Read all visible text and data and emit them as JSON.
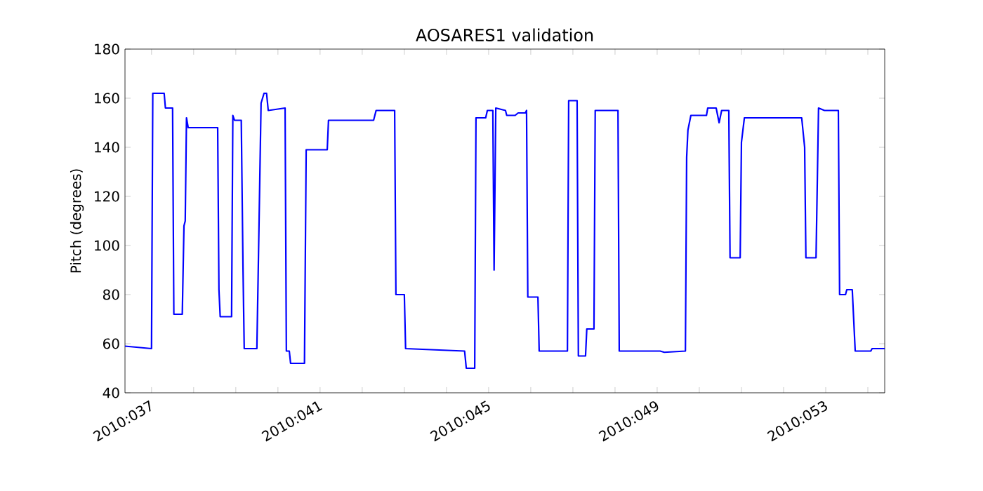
{
  "chart_data": {
    "type": "line",
    "title": "AOSARES1 validation",
    "ylabel": "Pitch (degrees)",
    "x": [
      "2010-02-05T08:53",
      "2010-02-06T00:00",
      "2010-02-06T00:43",
      "2010-02-06T07:12",
      "2010-02-06T07:55",
      "2010-02-06T12:00",
      "2010-02-06T12:43",
      "2010-02-06T17:31",
      "2010-02-06T18:29",
      "2010-02-06T19:12",
      "2010-02-06T19:55",
      "2010-02-06T20:53",
      "2010-02-07T13:41",
      "2010-02-07T14:24",
      "2010-02-07T15:07",
      "2010-02-07T21:36",
      "2010-02-07T22:19",
      "2010-02-07T23:17",
      "2010-02-08T03:07",
      "2010-02-08T04:05",
      "2010-02-08T04:48",
      "2010-02-08T12:00",
      "2010-02-08T12:43",
      "2010-02-08T14:24",
      "2010-02-08T16:05",
      "2010-02-08T17:31",
      "2010-02-08T18:29",
      "2010-02-09T04:05",
      "2010-02-09T04:48",
      "2010-02-09T06:29",
      "2010-02-09T07:12",
      "2010-02-09T15:07",
      "2010-02-09T16:05",
      "2010-02-10T04:05",
      "2010-02-10T04:48",
      "2010-02-11T06:29",
      "2010-02-11T07:55",
      "2010-02-11T18:29",
      "2010-02-11T19:12",
      "2010-02-12T00:00",
      "2010-02-12T00:43",
      "2010-02-13T10:19",
      "2010-02-13T11:17",
      "2010-02-13T16:05",
      "2010-02-13T16:48",
      "2010-02-13T22:19",
      "2010-02-13T23:17",
      "2010-02-14T02:24",
      "2010-02-14T03:07",
      "2010-02-14T04:05",
      "2010-02-14T09:36",
      "2010-02-14T10:19",
      "2010-02-14T15:07",
      "2010-02-14T16:48",
      "2010-02-14T20:53",
      "2010-02-14T21:36",
      "2010-02-14T22:19",
      "2010-02-15T04:05",
      "2010-02-15T04:48",
      "2010-02-15T20:53",
      "2010-02-15T21:36",
      "2010-02-16T02:24",
      "2010-02-16T03:07",
      "2010-02-16T07:12",
      "2010-02-16T07:55",
      "2010-02-16T12:00",
      "2010-02-16T12:43",
      "2010-02-17T01:41",
      "2010-02-17T02:24",
      "2010-02-18T01:41",
      "2010-02-18T04:05",
      "2010-02-18T16:05",
      "2010-02-18T16:48",
      "2010-02-18T17:31",
      "2010-02-18T19:12",
      "2010-02-19T04:05",
      "2010-02-19T04:48",
      "2010-02-19T09:36",
      "2010-02-19T11:17",
      "2010-02-19T12:43",
      "2010-02-19T16:48",
      "2010-02-19T17:31",
      "2010-02-19T23:17",
      "2010-02-20T00:00",
      "2010-02-20T01:41",
      "2010-02-21T10:19",
      "2010-02-21T12:00",
      "2010-02-21T12:43",
      "2010-02-21T18:29",
      "2010-02-21T19:55",
      "2010-02-21T23:17",
      "2010-02-22T07:12",
      "2010-02-22T07:55",
      "2010-02-22T11:17",
      "2010-02-22T12:00",
      "2010-02-22T15:07",
      "2010-02-22T16:48",
      "2010-02-23T01:41",
      "2010-02-23T02:24",
      "2010-02-23T09:36"
    ],
    "series": [
      {
        "color": "#0000ff",
        "values": [
          59,
          58,
          162,
          162,
          156,
          156,
          72,
          72,
          108,
          110,
          152,
          148,
          148,
          82,
          71,
          71,
          153,
          151,
          151,
          92,
          58,
          58,
          87,
          158,
          162,
          162,
          155,
          156,
          57,
          57,
          52,
          52,
          139,
          139,
          151,
          151,
          155,
          155,
          80,
          80,
          58,
          57,
          50,
          50,
          152,
          152,
          155,
          155,
          90,
          156,
          155,
          153,
          153,
          154,
          154,
          155,
          79,
          79,
          57,
          57,
          159,
          159,
          55,
          55,
          66,
          66,
          155,
          155,
          57,
          57,
          56.5,
          57,
          136,
          147,
          153,
          153,
          156,
          156,
          150,
          155,
          155,
          95,
          95,
          142,
          152,
          152,
          140,
          95,
          95,
          156,
          155,
          155,
          80,
          80,
          82,
          82,
          57,
          57,
          58,
          58
        ]
      }
    ],
    "xlim": [
      "2010-02-05T08:53",
      "2010-02-23T09:36"
    ],
    "ylim": [
      40,
      180
    ],
    "xticks": [
      {
        "value": "2010-02-06",
        "label": "2010:037"
      },
      {
        "value": "2010-02-07",
        "label": null
      },
      {
        "value": "2010-02-08",
        "label": null
      },
      {
        "value": "2010-02-09",
        "label": null
      },
      {
        "value": "2010-02-10",
        "label": "2010:041"
      },
      {
        "value": "2010-02-11",
        "label": null
      },
      {
        "value": "2010-02-12",
        "label": null
      },
      {
        "value": "2010-02-13",
        "label": null
      },
      {
        "value": "2010-02-14",
        "label": "2010:045"
      },
      {
        "value": "2010-02-15",
        "label": null
      },
      {
        "value": "2010-02-16",
        "label": null
      },
      {
        "value": "2010-02-17",
        "label": null
      },
      {
        "value": "2010-02-18",
        "label": "2010:049"
      },
      {
        "value": "2010-02-19",
        "label": null
      },
      {
        "value": "2010-02-20",
        "label": null
      },
      {
        "value": "2010-02-21",
        "label": null
      },
      {
        "value": "2010-02-22",
        "label": "2010:053"
      },
      {
        "value": "2010-02-23",
        "label": null
      }
    ],
    "yticks": [
      40,
      60,
      80,
      100,
      120,
      140,
      160,
      180
    ],
    "grid": false,
    "line_style": "solid",
    "marker": "none"
  }
}
